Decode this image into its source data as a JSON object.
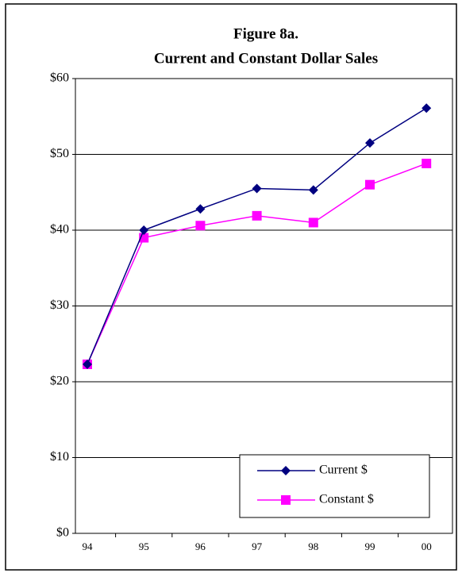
{
  "chart_data": {
    "type": "line",
    "title": [
      "Figure 8a.",
      "Current and Constant Dollar Sales"
    ],
    "categories": [
      "94",
      "95",
      "96",
      "97",
      "98",
      "99",
      "00"
    ],
    "series": [
      {
        "name": "Current $",
        "color": "#000080",
        "marker": "diamond",
        "values": [
          22.3,
          40.0,
          42.8,
          45.5,
          45.3,
          51.5,
          56.1
        ]
      },
      {
        "name": "Constant $",
        "color": "#ff00ff",
        "marker": "square",
        "values": [
          22.3,
          39.0,
          40.6,
          41.9,
          41.0,
          46.0,
          48.8
        ]
      }
    ],
    "ylim": [
      0,
      60
    ],
    "yticks": [
      {
        "value": 0,
        "label": "$0"
      },
      {
        "value": 10,
        "label": "$10"
      },
      {
        "value": 20,
        "label": "$20"
      },
      {
        "value": 30,
        "label": "$30"
      },
      {
        "value": 40,
        "label": "$40"
      },
      {
        "value": 50,
        "label": "$50"
      },
      {
        "value": 60,
        "label": "$60"
      }
    ],
    "grid": true,
    "legend": "lower right"
  }
}
